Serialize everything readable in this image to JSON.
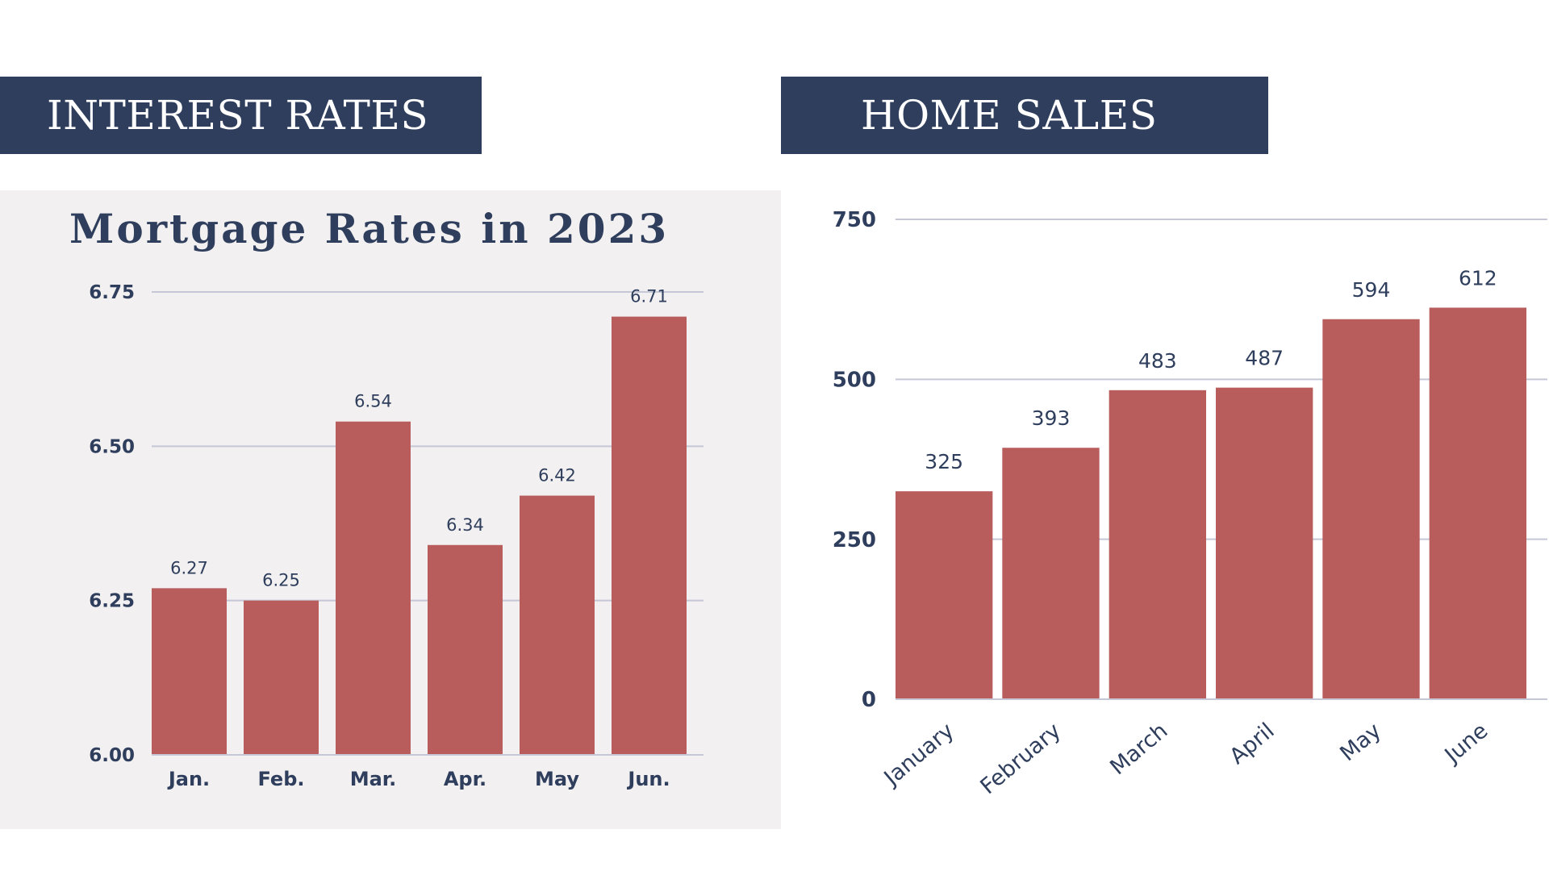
{
  "banners": {
    "left": "INTEREST RATES",
    "right": "HOME SALES"
  },
  "colors": {
    "banner_bg": "#2e3e5c",
    "bar": "#b85c5c",
    "text": "#2e3e5c",
    "panel_bg": "#f2f0f1",
    "grid": "#c5c7d6"
  },
  "chart_data": [
    {
      "type": "bar",
      "title": "Mortgage Rates in 2023",
      "xlabel": "",
      "ylabel": "",
      "categories": [
        "Jan.",
        "Feb.",
        "Mar.",
        "Apr.",
        "May",
        "Jun."
      ],
      "values": [
        6.27,
        6.25,
        6.54,
        6.34,
        6.42,
        6.71
      ],
      "value_labels": [
        "6.27",
        "6.25",
        "6.54",
        "6.34",
        "6.42",
        "6.71"
      ],
      "ylim": [
        6.0,
        6.75
      ],
      "yticks": [
        "6.00",
        "6.25",
        "6.50",
        "6.75"
      ],
      "grid": true,
      "legend": "none"
    },
    {
      "type": "bar",
      "title": "",
      "xlabel": "",
      "ylabel": "",
      "categories": [
        "January",
        "February",
        "March",
        "April",
        "May",
        "June"
      ],
      "values": [
        325,
        393,
        483,
        487,
        594,
        612
      ],
      "value_labels": [
        "325",
        "393",
        "483",
        "487",
        "594",
        "612"
      ],
      "ylim": [
        0,
        750
      ],
      "yticks": [
        "0",
        "250",
        "500",
        "750"
      ],
      "grid": true,
      "legend": "none"
    }
  ]
}
